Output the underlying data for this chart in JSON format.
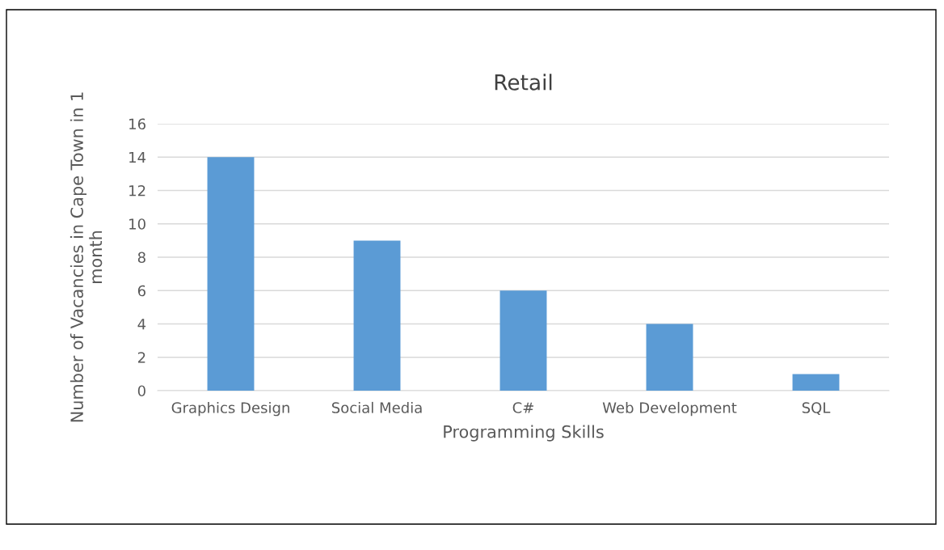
{
  "chart_data": {
    "type": "bar",
    "title": "Retail",
    "xlabel": "Programming Skills",
    "ylabel": "Number of Vacancies in Cape Town in 1\nmonth",
    "categories": [
      "Graphics Design",
      "Social Media",
      "C#",
      "Web Development",
      "SQL"
    ],
    "values": [
      14,
      9,
      6,
      4,
      1
    ],
    "color": "#5b9bd5",
    "ylim": [
      0,
      16
    ],
    "yticks": [
      0,
      2,
      4,
      6,
      8,
      10,
      12,
      14,
      16
    ],
    "grid": "y",
    "legend": false
  }
}
